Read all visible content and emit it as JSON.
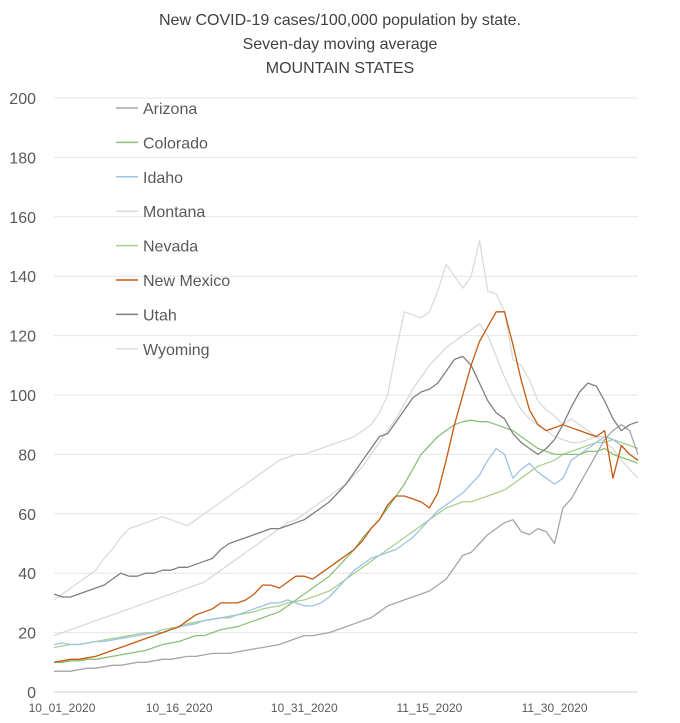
{
  "chart_data": {
    "type": "line",
    "title_lines": [
      "New COVID-19 cases/100,000 population by state.",
      "Seven-day moving average",
      "MOUNTAIN STATES"
    ],
    "xlabel": "",
    "ylabel": "",
    "ylim": [
      0,
      200
    ],
    "yticks": [
      0,
      20,
      40,
      60,
      80,
      100,
      120,
      140,
      160,
      180,
      200
    ],
    "x_start": "10_01_2020",
    "x_count": 71,
    "xtick_labels": [
      {
        "index": 0,
        "label": "10_01_2020"
      },
      {
        "index": 15,
        "label": "10_16_2020"
      },
      {
        "index": 30,
        "label": "10_31_2020"
      },
      {
        "index": 45,
        "label": "11_15_2020"
      },
      {
        "index": 60,
        "label": "11_30_2020"
      }
    ],
    "grid": "horizontal",
    "legend_position": "top-left",
    "series": [
      {
        "name": "Arizona",
        "color": "#a5a5a5",
        "values": [
          7,
          7,
          7,
          7.5,
          8,
          8,
          8.5,
          9,
          9,
          9.5,
          10,
          10,
          10.5,
          11,
          11,
          11.5,
          12,
          12,
          12.5,
          13,
          13,
          13,
          13.5,
          14,
          14.5,
          15,
          15.5,
          16,
          17,
          18,
          19,
          19,
          19.5,
          20,
          21,
          22,
          23,
          24,
          25,
          27,
          29,
          30,
          31,
          32,
          33,
          34,
          36,
          38,
          42,
          46,
          47,
          50,
          53,
          55,
          57,
          58,
          54,
          53,
          55,
          54,
          50,
          62,
          65,
          70,
          75,
          80,
          85,
          88,
          90,
          88,
          80
        ]
      },
      {
        "name": "Colorado",
        "color": "#8bc079",
        "values": [
          10,
          10,
          10.5,
          10.5,
          11,
          11,
          11.5,
          12,
          12.5,
          13,
          13.5,
          14,
          15,
          16,
          16.5,
          17,
          18,
          19,
          19,
          20,
          21,
          21.5,
          22,
          23,
          24,
          25,
          26,
          27,
          29,
          31,
          33,
          35,
          37,
          39,
          42,
          45,
          48,
          52,
          55,
          58,
          62,
          66,
          70,
          75,
          80,
          83,
          86,
          88,
          90,
          91,
          91.5,
          91,
          91,
          90,
          89,
          88,
          86,
          84,
          82,
          81,
          80,
          80,
          80,
          80,
          81,
          81,
          82,
          80,
          79,
          78,
          77
        ]
      },
      {
        "name": "Idaho",
        "color": "#9dc3e6",
        "values": [
          16,
          16.5,
          16,
          16,
          16.5,
          17,
          17,
          17.5,
          18,
          18.5,
          19,
          19.5,
          20,
          20,
          21,
          22,
          22.5,
          23,
          24,
          24.5,
          25,
          25,
          26,
          27,
          28,
          29,
          30,
          30,
          31,
          30,
          29,
          29,
          30,
          32,
          35,
          38,
          41,
          43,
          45,
          46,
          47,
          48,
          50,
          52,
          55,
          58,
          61,
          63,
          65,
          67,
          70,
          73,
          78,
          82,
          80,
          72,
          75,
          77,
          74,
          72,
          70,
          72,
          78,
          80,
          82,
          84,
          86,
          85,
          83,
          80,
          78
        ]
      },
      {
        "name": "Montana",
        "color": "#d9d9d9",
        "values": [
          19,
          20,
          21,
          22,
          23,
          24,
          25,
          26,
          27,
          28,
          29,
          30,
          31,
          32,
          33,
          34,
          35,
          36,
          37,
          39,
          41,
          43,
          45,
          47,
          49,
          51,
          53,
          55,
          57,
          58,
          60,
          62,
          64,
          66,
          68,
          70,
          73,
          76,
          80,
          84,
          88,
          92,
          97,
          102,
          106,
          110,
          113,
          116,
          118,
          120,
          122,
          124,
          120,
          113,
          106,
          100,
          95,
          92,
          90,
          88,
          86,
          85,
          84,
          84,
          85,
          86,
          86,
          85,
          84,
          83,
          82
        ]
      },
      {
        "name": "Nevada",
        "color": "#a9d18e",
        "values": [
          15,
          15.5,
          16,
          16,
          16.5,
          17,
          17.5,
          18,
          18.5,
          19,
          19.5,
          20,
          20,
          21,
          21.5,
          22,
          23,
          23.5,
          24,
          24.5,
          25,
          25.5,
          26,
          26.5,
          27,
          28,
          28.5,
          29,
          30,
          30.5,
          31,
          32,
          33,
          34,
          36,
          38,
          40,
          42,
          44,
          46,
          48,
          50,
          52,
          54,
          56,
          58,
          60,
          62,
          63,
          64,
          64,
          65,
          66,
          67,
          68,
          70,
          72,
          74,
          76,
          77,
          78,
          80,
          81,
          82,
          83,
          84,
          84,
          85,
          84,
          83,
          82
        ]
      },
      {
        "name": "New Mexico",
        "color": "#c55a11",
        "values": [
          10,
          10.5,
          11,
          11,
          11.5,
          12,
          13,
          14,
          15,
          16,
          17,
          18,
          19,
          20,
          21,
          22,
          24,
          26,
          27,
          28,
          30,
          30,
          30,
          31,
          33,
          36,
          36,
          35,
          37,
          39,
          39,
          38,
          40,
          42,
          44,
          46,
          48,
          51,
          55,
          58,
          63,
          66,
          66,
          65,
          64,
          62,
          67,
          78,
          90,
          100,
          110,
          118,
          123,
          128,
          128,
          117,
          105,
          95,
          90,
          88,
          89,
          90,
          89,
          88,
          87,
          86,
          88,
          72,
          83,
          80,
          78
        ]
      },
      {
        "name": "Utah",
        "color": "#7f7f7f",
        "values": [
          33,
          32,
          32,
          33,
          34,
          35,
          36,
          38,
          40,
          39,
          39,
          40,
          40,
          41,
          41,
          42,
          42,
          43,
          44,
          45,
          48,
          50,
          51,
          52,
          53,
          54,
          55,
          55,
          56,
          57,
          58,
          60,
          62,
          64,
          67,
          70,
          74,
          78,
          82,
          86,
          87,
          91,
          95,
          99,
          101,
          102,
          104,
          108,
          112,
          113,
          110,
          104,
          98,
          94,
          92,
          87,
          84,
          82,
          80,
          82,
          85,
          90,
          96,
          101,
          104,
          103,
          98,
          92,
          88,
          90,
          91
        ]
      },
      {
        "name": "Wyoming",
        "color": "#dbdbdb",
        "values": [
          31,
          33,
          35,
          37,
          39,
          41,
          45,
          48,
          52,
          55,
          56,
          57,
          58,
          59,
          58,
          57,
          56,
          58,
          60,
          62,
          64,
          66,
          68,
          70,
          72,
          74,
          76,
          78,
          79,
          80,
          80,
          81,
          82,
          83,
          84,
          85,
          86,
          88,
          90,
          94,
          100,
          115,
          128,
          127,
          126,
          128,
          135,
          144,
          140,
          136,
          140,
          152,
          135,
          134,
          128,
          112,
          110,
          105,
          98,
          95,
          93,
          90,
          92,
          90,
          88,
          86,
          84,
          82,
          78,
          75,
          72
        ]
      }
    ]
  }
}
